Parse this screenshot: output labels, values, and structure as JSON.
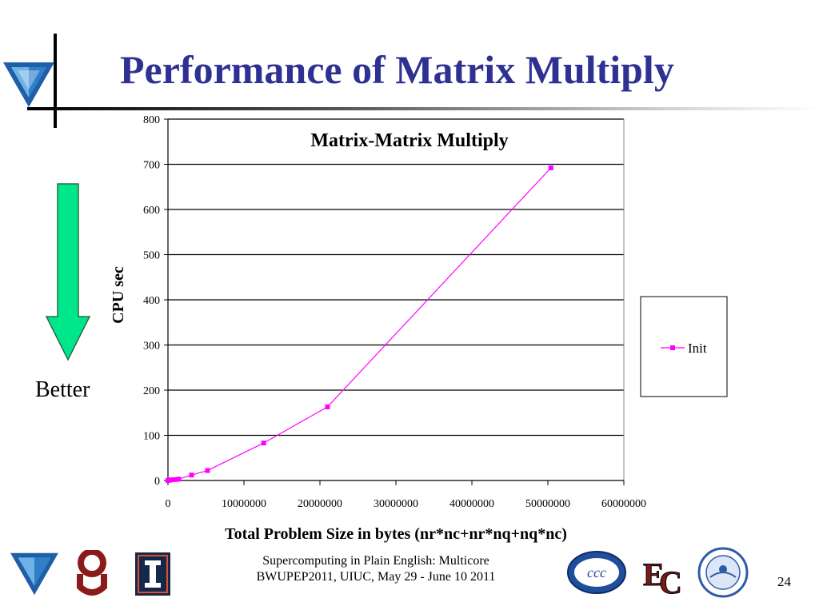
{
  "slide": {
    "title": "Performance of Matrix Multiply",
    "arrow_label": "Better",
    "footer_line1": "Supercomputing in Plain English: Multicore",
    "footer_line2": "BWUPEP2011, UIUC, May 29 - June 10 2011",
    "page_number": "24",
    "arrow_color": "#00e68a",
    "title_color": "#2e3192"
  },
  "logos": [
    "oscer-logo",
    "ou-logo",
    "illinois-logo",
    "ccc-logo",
    "ec-logo",
    "hampton-university-seal"
  ],
  "chart_data": {
    "type": "line",
    "title": "Matrix-Matrix Multiply",
    "xlabel": "Total Problem Size in bytes (nr*nc+nr*nq+nq*nc)",
    "ylabel": "CPU sec",
    "xlim": [
      0,
      60000000
    ],
    "ylim": [
      0,
      800
    ],
    "xticks": [
      "0",
      "10000000",
      "20000000",
      "30000000",
      "40000000",
      "50000000",
      "60000000"
    ],
    "yticks": [
      "0",
      "100",
      "200",
      "300",
      "400",
      "500",
      "600",
      "700",
      "800"
    ],
    "grid": "horizontal",
    "legend_position": "right",
    "series": [
      {
        "name": "Init",
        "color": "#ff00ff",
        "points": [
          {
            "x": 0,
            "y": 0
          },
          {
            "x": 200000,
            "y": 1
          },
          {
            "x": 500000,
            "y": 1.5
          },
          {
            "x": 1000000,
            "y": 2
          },
          {
            "x": 1400000,
            "y": 3
          },
          {
            "x": 3100000,
            "y": 12
          },
          {
            "x": 5200000,
            "y": 22
          },
          {
            "x": 12600000,
            "y": 83
          },
          {
            "x": 21000000,
            "y": 163
          },
          {
            "x": 50400000,
            "y": 692
          }
        ]
      }
    ]
  }
}
